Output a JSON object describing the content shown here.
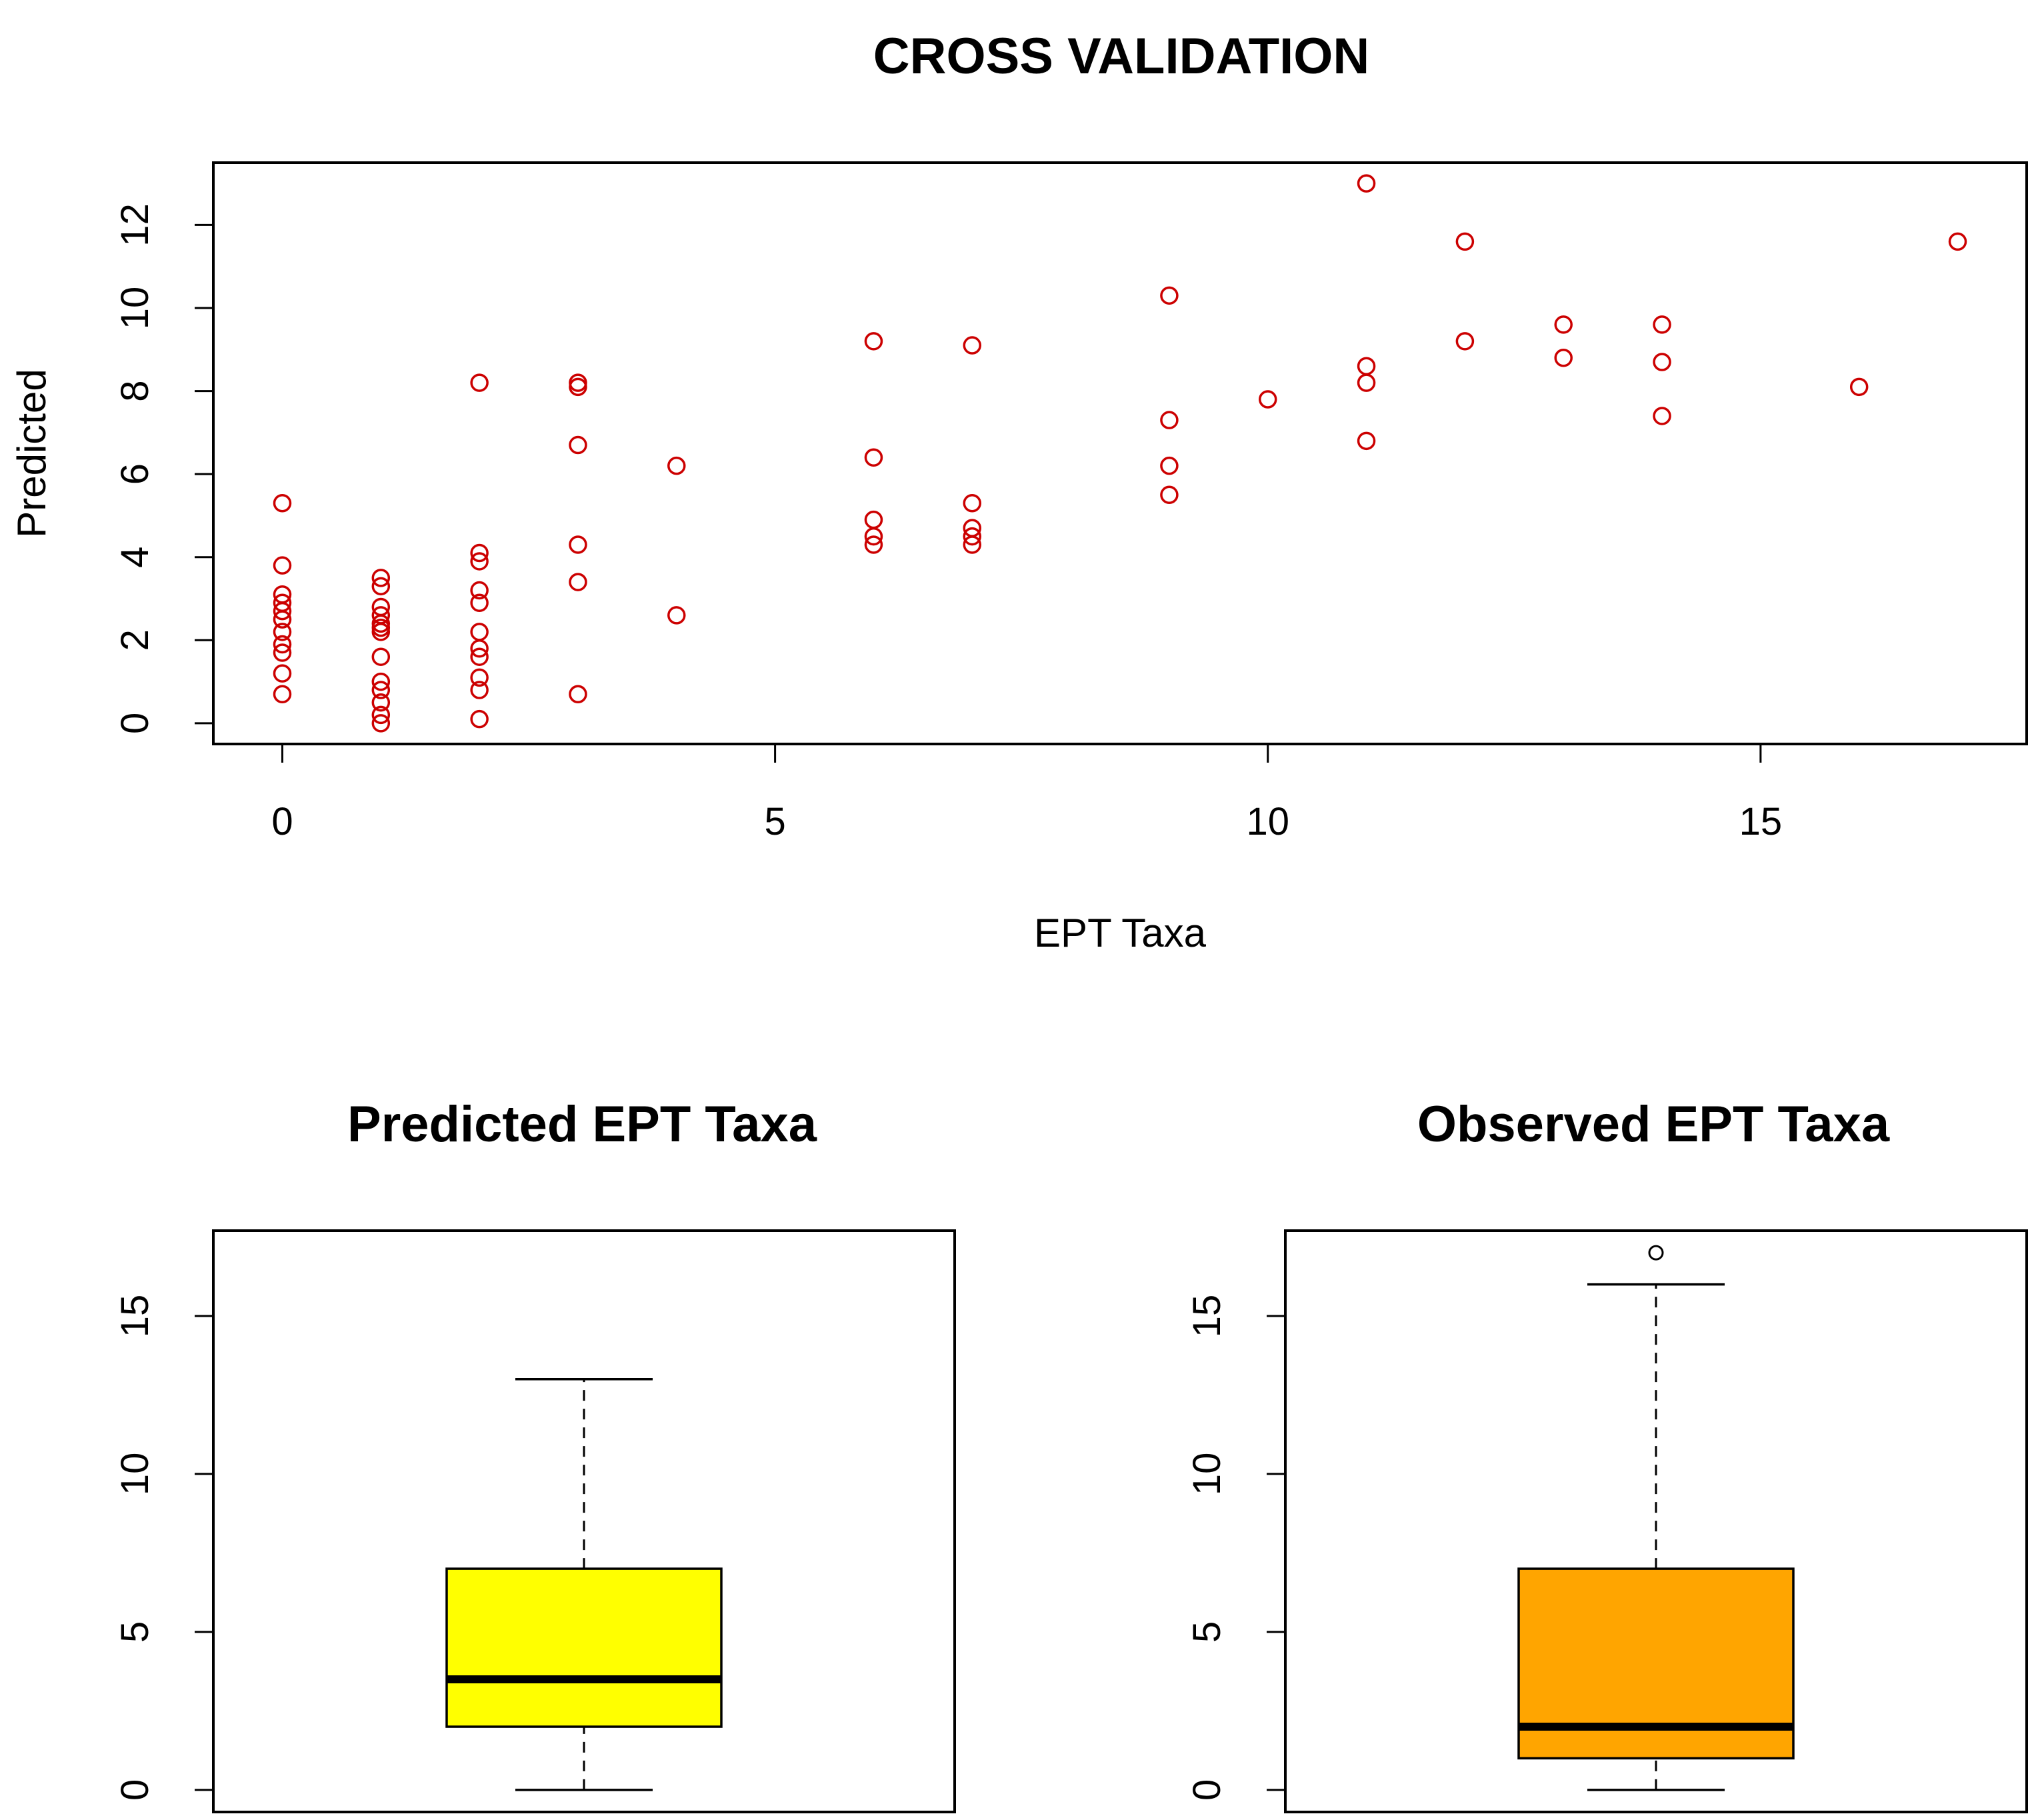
{
  "chart_data": [
    {
      "type": "scatter",
      "title": "CROSS VALIDATION",
      "xlabel": "EPT Taxa",
      "ylabel": "Predicted",
      "xlim": [
        -0.7,
        17.7
      ],
      "ylim": [
        -0.5,
        13.5
      ],
      "xticks": [
        0,
        5,
        10,
        15
      ],
      "xtick_labels": [
        "0",
        "5",
        "10",
        "15"
      ],
      "yticks": [
        0,
        2,
        4,
        6,
        8,
        10,
        12
      ],
      "ytick_labels": [
        "0",
        "2",
        "4",
        "6",
        "8",
        "10",
        "12"
      ],
      "marker_color": "#cc0000",
      "points": [
        {
          "x": 0,
          "y": 5.3
        },
        {
          "x": 0,
          "y": 3.8
        },
        {
          "x": 0,
          "y": 3.1
        },
        {
          "x": 0,
          "y": 2.9
        },
        {
          "x": 0,
          "y": 2.7
        },
        {
          "x": 0,
          "y": 2.5
        },
        {
          "x": 0,
          "y": 2.2
        },
        {
          "x": 0,
          "y": 1.9
        },
        {
          "x": 0,
          "y": 1.7
        },
        {
          "x": 0,
          "y": 1.2
        },
        {
          "x": 0,
          "y": 0.7
        },
        {
          "x": 1,
          "y": 3.5
        },
        {
          "x": 1,
          "y": 3.3
        },
        {
          "x": 1,
          "y": 2.8
        },
        {
          "x": 1,
          "y": 2.6
        },
        {
          "x": 1,
          "y": 2.4
        },
        {
          "x": 1,
          "y": 2.3
        },
        {
          "x": 1,
          "y": 2.2
        },
        {
          "x": 1,
          "y": 1.6
        },
        {
          "x": 1,
          "y": 1.0
        },
        {
          "x": 1,
          "y": 0.8
        },
        {
          "x": 1,
          "y": 0.5
        },
        {
          "x": 1,
          "y": 0.2
        },
        {
          "x": 1,
          "y": 0.0
        },
        {
          "x": 2,
          "y": 8.2
        },
        {
          "x": 2,
          "y": 4.1
        },
        {
          "x": 2,
          "y": 3.9
        },
        {
          "x": 2,
          "y": 3.2
        },
        {
          "x": 2,
          "y": 2.9
        },
        {
          "x": 2,
          "y": 2.2
        },
        {
          "x": 2,
          "y": 1.8
        },
        {
          "x": 2,
          "y": 1.6
        },
        {
          "x": 2,
          "y": 1.1
        },
        {
          "x": 2,
          "y": 0.8
        },
        {
          "x": 2,
          "y": 0.1
        },
        {
          "x": 3,
          "y": 8.2
        },
        {
          "x": 3,
          "y": 8.1
        },
        {
          "x": 3,
          "y": 6.7
        },
        {
          "x": 3,
          "y": 4.3
        },
        {
          "x": 3,
          "y": 3.4
        },
        {
          "x": 3,
          "y": 0.7
        },
        {
          "x": 4,
          "y": 6.2
        },
        {
          "x": 4,
          "y": 2.6
        },
        {
          "x": 6,
          "y": 9.2
        },
        {
          "x": 6,
          "y": 6.4
        },
        {
          "x": 6,
          "y": 4.9
        },
        {
          "x": 6,
          "y": 4.5
        },
        {
          "x": 6,
          "y": 4.3
        },
        {
          "x": 7,
          "y": 9.1
        },
        {
          "x": 7,
          "y": 5.3
        },
        {
          "x": 7,
          "y": 4.7
        },
        {
          "x": 7,
          "y": 4.5
        },
        {
          "x": 7,
          "y": 4.3
        },
        {
          "x": 9,
          "y": 10.3
        },
        {
          "x": 9,
          "y": 7.3
        },
        {
          "x": 9,
          "y": 6.2
        },
        {
          "x": 9,
          "y": 5.5
        },
        {
          "x": 10,
          "y": 7.8
        },
        {
          "x": 11,
          "y": 13.0
        },
        {
          "x": 11,
          "y": 8.6
        },
        {
          "x": 11,
          "y": 8.2
        },
        {
          "x": 11,
          "y": 6.8
        },
        {
          "x": 12,
          "y": 11.6
        },
        {
          "x": 12,
          "y": 9.2
        },
        {
          "x": 13,
          "y": 9.6
        },
        {
          "x": 13,
          "y": 8.8
        },
        {
          "x": 14,
          "y": 9.6
        },
        {
          "x": 14,
          "y": 8.7
        },
        {
          "x": 14,
          "y": 7.4
        },
        {
          "x": 16,
          "y": 8.1
        },
        {
          "x": 17,
          "y": 11.6
        }
      ]
    },
    {
      "type": "box",
      "title": "Predicted EPT Taxa",
      "ylim": [
        -0.7,
        17.7
      ],
      "yticks": [
        0,
        5,
        10,
        15
      ],
      "ytick_labels": [
        "0",
        "5",
        "10",
        "15"
      ],
      "fill": "#ffff00",
      "whisker_low": 0,
      "q1": 2,
      "median": 3.5,
      "q3": 7,
      "whisker_high": 13,
      "outliers": []
    },
    {
      "type": "box",
      "title": "Observed EPT Taxa",
      "ylim": [
        -0.7,
        17.7
      ],
      "yticks": [
        0,
        5,
        10,
        15
      ],
      "ytick_labels": [
        "0",
        "5",
        "10",
        "15"
      ],
      "fill": "#ffa500",
      "whisker_low": 0,
      "q1": 1,
      "median": 2,
      "q3": 7,
      "whisker_high": 16,
      "outliers": [
        17
      ]
    }
  ]
}
